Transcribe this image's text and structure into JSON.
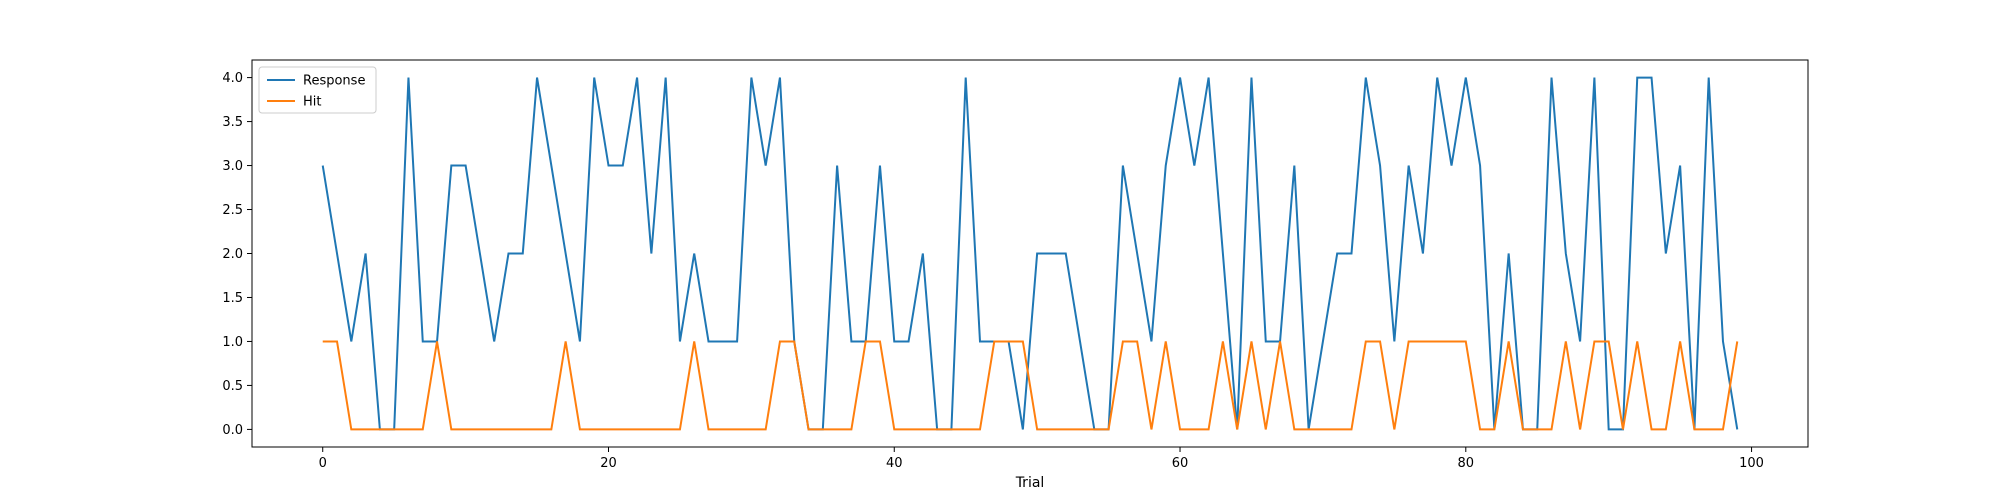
{
  "chart_data": {
    "type": "line",
    "title": "",
    "xlabel": "Trial",
    "ylabel": "",
    "xlim": [
      -4.95,
      103.95
    ],
    "ylim": [
      -0.2,
      4.2
    ],
    "xticks": [
      0,
      20,
      40,
      60,
      80,
      100
    ],
    "yticks": [
      0.0,
      0.5,
      1.0,
      1.5,
      2.0,
      2.5,
      3.0,
      3.5,
      4.0
    ],
    "xtick_labels": [
      "0",
      "20",
      "40",
      "60",
      "80",
      "100"
    ],
    "ytick_labels": [
      "0.0",
      "0.5",
      "1.0",
      "1.5",
      "2.0",
      "2.5",
      "3.0",
      "3.5",
      "4.0"
    ],
    "grid": false,
    "legend_position": "upper-left",
    "series": [
      {
        "name": "Response",
        "color": "#1f77b4",
        "values": [
          3,
          2,
          1,
          2,
          0,
          0,
          4,
          1,
          1,
          3,
          3,
          2,
          1,
          2,
          2,
          4,
          3,
          2,
          1,
          4,
          3,
          3,
          4,
          2,
          4,
          1,
          2,
          1,
          1,
          1,
          4,
          3,
          4,
          1,
          0,
          0,
          3,
          1,
          1,
          3,
          1,
          1,
          2,
          0,
          0,
          4,
          1,
          1,
          1,
          0,
          2,
          2,
          2,
          1,
          0,
          0,
          3,
          2,
          1,
          3,
          4,
          3,
          4,
          2,
          0,
          4,
          1,
          1,
          3,
          0,
          1,
          2,
          2,
          4,
          3,
          1,
          3,
          2,
          4,
          3,
          4,
          3,
          0,
          2,
          0,
          0,
          4,
          2,
          1,
          4,
          0,
          0,
          4,
          4,
          2,
          3,
          0,
          4,
          1,
          0
        ]
      },
      {
        "name": "Hit",
        "color": "#ff7f0e",
        "values": [
          1,
          1,
          0,
          0,
          0,
          0,
          0,
          0,
          1,
          0,
          0,
          0,
          0,
          0,
          0,
          0,
          0,
          1,
          0,
          0,
          0,
          0,
          0,
          0,
          0,
          0,
          1,
          0,
          0,
          0,
          0,
          0,
          1,
          1,
          0,
          0,
          0,
          0,
          1,
          1,
          0,
          0,
          0,
          0,
          0,
          0,
          0,
          1,
          1,
          1,
          0,
          0,
          0,
          0,
          0,
          0,
          1,
          1,
          0,
          1,
          0,
          0,
          0,
          1,
          0,
          1,
          0,
          1,
          0,
          0,
          0,
          0,
          0,
          1,
          1,
          0,
          1,
          1,
          1,
          1,
          1,
          0,
          0,
          1,
          0,
          0,
          0,
          1,
          0,
          1,
          1,
          0,
          1,
          0,
          0,
          1,
          0,
          0,
          0,
          1
        ]
      }
    ]
  }
}
